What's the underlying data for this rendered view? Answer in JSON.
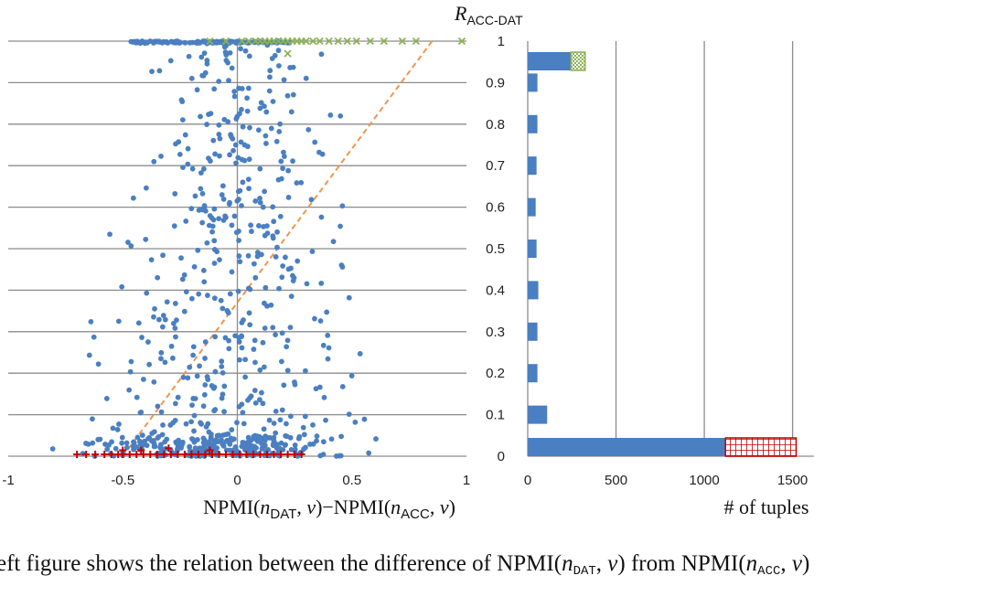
{
  "chart_data": [
    {
      "type": "scatter",
      "xlabel": "NPMI(n_DAT, v)−NPMI(n_ACC, v)",
      "ylabel": "R_ACC-DAT",
      "xlim": [
        -1,
        1
      ],
      "ylim": [
        0,
        1
      ],
      "x_ticks": [
        "-1",
        "-0.5",
        "0",
        "0.5",
        "1"
      ],
      "y_ticks": [
        "0",
        "0.1",
        "0.2",
        "0.3",
        "0.4",
        "0.5",
        "0.6",
        "0.7",
        "0.8",
        "0.9",
        "1"
      ],
      "grid": "horizontal",
      "colors": {
        "points": "#4a7fc1",
        "top_markers": "#8db255",
        "bottom_markers": "#c00000",
        "fit_line": "#f0954a",
        "grid": "#8c8c8c"
      },
      "series": [
        {
          "marker": "circle",
          "color": "#4a7fc1",
          "points": []
        },
        {
          "marker": "x",
          "color": "#8db255",
          "points": [
            [
              -0.12,
              1.0
            ],
            [
              -0.05,
              1.0
            ],
            [
              0.02,
              1.0
            ],
            [
              0.05,
              1.0
            ],
            [
              0.08,
              1.0
            ],
            [
              0.1,
              1.0
            ],
            [
              0.12,
              1.0
            ],
            [
              0.14,
              1.0
            ],
            [
              0.16,
              1.0
            ],
            [
              0.18,
              1.0
            ],
            [
              0.2,
              1.0
            ],
            [
              0.22,
              1.0
            ],
            [
              0.24,
              1.0
            ],
            [
              0.26,
              1.0
            ],
            [
              0.28,
              1.0
            ],
            [
              0.3,
              1.0
            ],
            [
              0.33,
              1.0
            ],
            [
              0.36,
              1.0
            ],
            [
              0.4,
              1.0
            ],
            [
              0.44,
              1.0
            ],
            [
              0.48,
              1.0
            ],
            [
              0.52,
              1.0
            ],
            [
              0.58,
              1.0
            ],
            [
              0.64,
              1.0
            ],
            [
              0.72,
              1.0
            ],
            [
              0.78,
              1.0
            ],
            [
              0.98,
              1.0
            ],
            [
              0.22,
              0.97
            ]
          ]
        },
        {
          "marker": "+",
          "color": "#c00000",
          "points": [
            [
              -0.7,
              0.0
            ],
            [
              -0.66,
              0.0
            ],
            [
              -0.62,
              0.0
            ],
            [
              -0.58,
              0.0
            ],
            [
              -0.55,
              0.0
            ],
            [
              -0.52,
              0.0
            ],
            [
              -0.5,
              0.0
            ],
            [
              -0.47,
              0.0
            ],
            [
              -0.44,
              0.0
            ],
            [
              -0.41,
              0.0
            ],
            [
              -0.38,
              0.0
            ],
            [
              -0.35,
              0.0
            ],
            [
              -0.32,
              0.0
            ],
            [
              -0.29,
              0.0
            ],
            [
              -0.26,
              0.0
            ],
            [
              -0.23,
              0.0
            ],
            [
              -0.2,
              0.0
            ],
            [
              -0.17,
              0.0
            ],
            [
              -0.14,
              0.0
            ],
            [
              -0.11,
              0.0
            ],
            [
              -0.08,
              0.0
            ],
            [
              -0.05,
              0.0
            ],
            [
              -0.02,
              0.0
            ],
            [
              0.01,
              0.0
            ],
            [
              0.04,
              0.0
            ],
            [
              0.07,
              0.0
            ],
            [
              0.1,
              0.0
            ],
            [
              0.13,
              0.0
            ],
            [
              0.16,
              0.0
            ],
            [
              0.19,
              0.0
            ],
            [
              0.22,
              0.0
            ],
            [
              0.25,
              0.0
            ],
            [
              0.28,
              0.0
            ],
            [
              -0.5,
              0.01
            ],
            [
              -0.3,
              0.015
            ],
            [
              -0.42,
              0.01
            ],
            [
              -0.12,
              0.01
            ]
          ]
        }
      ],
      "fit_line": {
        "x": [
          -0.5,
          0.85
        ],
        "y": [
          0.0,
          1.0
        ]
      }
    },
    {
      "type": "bar",
      "orientation": "horizontal",
      "xlabel": "# of tuples",
      "xlim": [
        0,
        1600
      ],
      "x_ticks": [
        "0",
        "500",
        "1000",
        "1500"
      ],
      "categories": [
        "0",
        "0.1",
        "0.2",
        "0.3",
        "0.4",
        "0.5",
        "0.6",
        "0.7",
        "0.8",
        "0.9",
        "1"
      ],
      "grid": "vertical",
      "series": [
        {
          "color": "#4a7fc1",
          "values": [
            1120,
            110,
            55,
            55,
            60,
            50,
            45,
            50,
            55,
            55,
            245
          ]
        },
        {
          "pattern": "grid-red",
          "color": "#c00000",
          "values": [
            400,
            0,
            0,
            0,
            0,
            0,
            0,
            0,
            0,
            0,
            0
          ]
        },
        {
          "pattern": "checker-green",
          "color": "#8db255",
          "values": [
            0,
            0,
            0,
            0,
            0,
            0,
            0,
            0,
            0,
            0,
            80
          ]
        }
      ]
    }
  ],
  "caption": {
    "line1": "eft figure shows the relation between the difference of NPMI(n ᴅᴀᴛ, v) from NPMI(n ᴀᴄᴄ, v)",
    "line2": "                                                                                              "
  }
}
